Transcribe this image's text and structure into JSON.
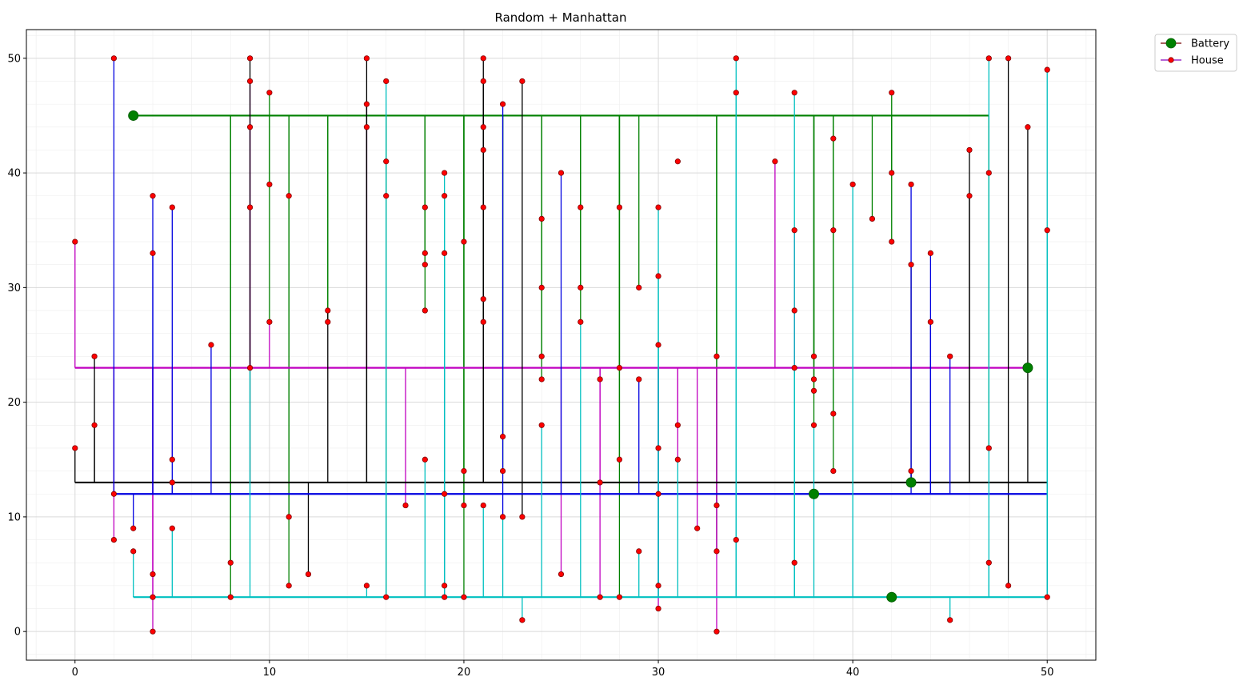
{
  "chart_data": {
    "type": "scatter",
    "title": "Random + Manhattan",
    "xlabel": "",
    "ylabel": "",
    "xlim": [
      -2.5,
      52.5
    ],
    "ylim": [
      -2.5,
      52.5
    ],
    "xticks": [
      0,
      10,
      20,
      30,
      40,
      50
    ],
    "yticks": [
      0,
      10,
      20,
      30,
      40,
      50
    ],
    "grid": true,
    "minor_grid": true,
    "legend_position": "outside-top-right",
    "legend": [
      {
        "label": "Battery",
        "marker": "large-dot",
        "line_color": "#8b2a2a",
        "marker_color": "#008000"
      },
      {
        "label": "House",
        "marker": "small-dot",
        "line_color": "#9b30c8",
        "marker_color": "#ff0000"
      }
    ],
    "colors": {
      "battery": "#008000",
      "house": "#ff0000",
      "house_edge": "#800000",
      "grid": "#d9d9d9",
      "grid_minor": "#eeeeee"
    },
    "series": [
      {
        "name": "Battery",
        "values": [
          [
            3,
            45
          ],
          [
            49,
            23
          ],
          [
            43,
            13
          ],
          [
            38,
            12
          ],
          [
            42,
            3
          ]
        ]
      },
      {
        "name": "House",
        "values": [
          [
            0,
            34
          ],
          [
            0,
            16
          ],
          [
            1,
            24
          ],
          [
            1,
            18
          ],
          [
            2,
            50
          ],
          [
            2,
            12
          ],
          [
            2,
            8
          ],
          [
            3,
            9
          ],
          [
            3,
            7
          ],
          [
            4,
            38
          ],
          [
            4,
            33
          ],
          [
            4,
            5
          ],
          [
            4,
            3
          ],
          [
            4,
            0
          ],
          [
            5,
            37
          ],
          [
            5,
            15
          ],
          [
            5,
            13
          ],
          [
            5,
            9
          ],
          [
            7,
            25
          ],
          [
            8,
            6
          ],
          [
            8,
            3
          ],
          [
            9,
            50
          ],
          [
            9,
            48
          ],
          [
            9,
            44
          ],
          [
            9,
            37
          ],
          [
            9,
            23
          ],
          [
            10,
            47
          ],
          [
            10,
            39
          ],
          [
            10,
            27
          ],
          [
            11,
            38
          ],
          [
            11,
            10
          ],
          [
            11,
            4
          ],
          [
            12,
            5
          ],
          [
            13,
            28
          ],
          [
            13,
            27
          ],
          [
            15,
            50
          ],
          [
            15,
            46
          ],
          [
            15,
            44
          ],
          [
            15,
            4
          ],
          [
            16,
            48
          ],
          [
            16,
            41
          ],
          [
            16,
            38
          ],
          [
            16,
            3
          ],
          [
            17,
            11
          ],
          [
            18,
            37
          ],
          [
            18,
            33
          ],
          [
            18,
            32
          ],
          [
            18,
            28
          ],
          [
            18,
            15
          ],
          [
            19,
            40
          ],
          [
            19,
            38
          ],
          [
            19,
            33
          ],
          [
            19,
            12
          ],
          [
            19,
            4
          ],
          [
            19,
            3
          ],
          [
            20,
            34
          ],
          [
            20,
            14
          ],
          [
            20,
            11
          ],
          [
            20,
            3
          ],
          [
            21,
            50
          ],
          [
            21,
            48
          ],
          [
            21,
            44
          ],
          [
            21,
            42
          ],
          [
            21,
            37
          ],
          [
            21,
            29
          ],
          [
            21,
            27
          ],
          [
            21,
            11
          ],
          [
            22,
            46
          ],
          [
            22,
            17
          ],
          [
            22,
            14
          ],
          [
            22,
            10
          ],
          [
            23,
            48
          ],
          [
            23,
            10
          ],
          [
            23,
            1
          ],
          [
            24,
            36
          ],
          [
            24,
            30
          ],
          [
            24,
            24
          ],
          [
            24,
            22
          ],
          [
            24,
            18
          ],
          [
            25,
            40
          ],
          [
            25,
            5
          ],
          [
            26,
            37
          ],
          [
            26,
            30
          ],
          [
            26,
            27
          ],
          [
            27,
            22
          ],
          [
            27,
            13
          ],
          [
            27,
            3
          ],
          [
            28,
            37
          ],
          [
            28,
            23
          ],
          [
            28,
            15
          ],
          [
            28,
            3
          ],
          [
            29,
            30
          ],
          [
            29,
            22
          ],
          [
            29,
            7
          ],
          [
            30,
            37
          ],
          [
            30,
            31
          ],
          [
            30,
            25
          ],
          [
            30,
            16
          ],
          [
            30,
            12
          ],
          [
            30,
            4
          ],
          [
            30,
            2
          ],
          [
            31,
            41
          ],
          [
            31,
            18
          ],
          [
            31,
            15
          ],
          [
            32,
            9
          ],
          [
            33,
            24
          ],
          [
            33,
            11
          ],
          [
            33,
            7
          ],
          [
            33,
            0
          ],
          [
            34,
            50
          ],
          [
            34,
            47
          ],
          [
            34,
            8
          ],
          [
            36,
            41
          ],
          [
            37,
            47
          ],
          [
            37,
            35
          ],
          [
            37,
            28
          ],
          [
            37,
            23
          ],
          [
            37,
            6
          ],
          [
            38,
            24
          ],
          [
            38,
            22
          ],
          [
            38,
            21
          ],
          [
            38,
            18
          ],
          [
            39,
            43
          ],
          [
            39,
            35
          ],
          [
            39,
            19
          ],
          [
            39,
            14
          ],
          [
            40,
            39
          ],
          [
            41,
            36
          ],
          [
            42,
            47
          ],
          [
            42,
            40
          ],
          [
            42,
            34
          ],
          [
            43,
            39
          ],
          [
            43,
            32
          ],
          [
            43,
            14
          ],
          [
            44,
            33
          ],
          [
            44,
            27
          ],
          [
            45,
            24
          ],
          [
            45,
            1
          ],
          [
            46,
            42
          ],
          [
            46,
            38
          ],
          [
            47,
            50
          ],
          [
            47,
            40
          ],
          [
            47,
            16
          ],
          [
            47,
            6
          ],
          [
            48,
            50
          ],
          [
            48,
            4
          ],
          [
            49,
            44
          ],
          [
            50,
            49
          ],
          [
            50,
            35
          ],
          [
            50,
            3
          ]
        ]
      }
    ],
    "networks": [
      {
        "color": "#008000",
        "battery": [
          3,
          45
        ],
        "trunk_y": 45,
        "houses": [
          [
            8,
            6
          ],
          [
            8,
            3
          ],
          [
            10,
            47
          ],
          [
            10,
            39
          ],
          [
            10,
            27
          ],
          [
            11,
            38
          ],
          [
            11,
            10
          ],
          [
            11,
            4
          ],
          [
            13,
            28
          ],
          [
            13,
            27
          ],
          [
            16,
            41
          ],
          [
            16,
            38
          ],
          [
            16,
            3
          ],
          [
            18,
            37
          ],
          [
            18,
            33
          ],
          [
            18,
            32
          ],
          [
            18,
            28
          ],
          [
            20,
            34
          ],
          [
            20,
            14
          ],
          [
            20,
            11
          ],
          [
            20,
            3
          ],
          [
            21,
            44
          ],
          [
            21,
            42
          ],
          [
            21,
            37
          ],
          [
            21,
            29
          ],
          [
            21,
            27
          ],
          [
            22,
            17
          ],
          [
            22,
            14
          ],
          [
            24,
            36
          ],
          [
            24,
            30
          ],
          [
            24,
            24
          ],
          [
            24,
            22
          ],
          [
            26,
            37
          ],
          [
            26,
            30
          ],
          [
            26,
            27
          ],
          [
            28,
            37
          ],
          [
            28,
            23
          ],
          [
            28,
            15
          ],
          [
            28,
            3
          ],
          [
            29,
            30
          ],
          [
            33,
            24
          ],
          [
            33,
            11
          ],
          [
            33,
            7
          ],
          [
            38,
            24
          ],
          [
            38,
            22
          ],
          [
            38,
            21
          ],
          [
            38,
            18
          ],
          [
            39,
            43
          ],
          [
            39,
            35
          ],
          [
            39,
            19
          ],
          [
            39,
            14
          ],
          [
            41,
            36
          ],
          [
            42,
            47
          ],
          [
            42,
            40
          ],
          [
            42,
            34
          ],
          [
            47,
            40
          ],
          [
            47,
            16
          ]
        ]
      },
      {
        "color": "#c000c0",
        "battery": [
          49,
          23
        ],
        "trunk_y": 23,
        "houses": [
          [
            0,
            34
          ],
          [
            2,
            12
          ],
          [
            2,
            8
          ],
          [
            4,
            5
          ],
          [
            4,
            3
          ],
          [
            4,
            0
          ],
          [
            5,
            15
          ],
          [
            9,
            48
          ],
          [
            9,
            44
          ],
          [
            9,
            37
          ],
          [
            10,
            27
          ],
          [
            15,
            44
          ],
          [
            17,
            11
          ],
          [
            19,
            12
          ],
          [
            19,
            4
          ],
          [
            19,
            3
          ],
          [
            25,
            5
          ],
          [
            27,
            22
          ],
          [
            27,
            13
          ],
          [
            27,
            3
          ],
          [
            30,
            16
          ],
          [
            30,
            12
          ],
          [
            30,
            4
          ],
          [
            30,
            2
          ],
          [
            31,
            18
          ],
          [
            31,
            15
          ],
          [
            32,
            9
          ],
          [
            33,
            7
          ],
          [
            33,
            0
          ],
          [
            36,
            41
          ],
          [
            37,
            35
          ],
          [
            37,
            28
          ]
        ]
      },
      {
        "color": "#000000",
        "battery": [
          43,
          13
        ],
        "trunk_y": 13,
        "houses": [
          [
            0,
            16
          ],
          [
            1,
            24
          ],
          [
            1,
            18
          ],
          [
            9,
            50
          ],
          [
            12,
            5
          ],
          [
            13,
            28
          ],
          [
            15,
            50
          ],
          [
            15,
            46
          ],
          [
            21,
            50
          ],
          [
            21,
            48
          ],
          [
            23,
            48
          ],
          [
            23,
            10
          ],
          [
            43,
            32
          ],
          [
            43,
            14
          ],
          [
            46,
            42
          ],
          [
            46,
            38
          ],
          [
            48,
            50
          ],
          [
            48,
            4
          ],
          [
            49,
            44
          ],
          [
            50,
            3
          ]
        ]
      },
      {
        "color": "#0000e0",
        "battery": [
          38,
          12
        ],
        "trunk_y": 12,
        "houses": [
          [
            2,
            50
          ],
          [
            3,
            9
          ],
          [
            4,
            38
          ],
          [
            4,
            33
          ],
          [
            5,
            37
          ],
          [
            5,
            13
          ],
          [
            7,
            25
          ],
          [
            22,
            46
          ],
          [
            22,
            10
          ],
          [
            25,
            40
          ],
          [
            29,
            22
          ],
          [
            43,
            39
          ],
          [
            44,
            33
          ],
          [
            44,
            27
          ],
          [
            45,
            24
          ],
          [
            50,
            12
          ]
        ]
      },
      {
        "color": "#00c0c0",
        "battery": [
          42,
          3
        ],
        "trunk_y": 3,
        "houses": [
          [
            3,
            7
          ],
          [
            5,
            9
          ],
          [
            9,
            23
          ],
          [
            15,
            4
          ],
          [
            16,
            48
          ],
          [
            18,
            15
          ],
          [
            19,
            40
          ],
          [
            19,
            38
          ],
          [
            19,
            33
          ],
          [
            21,
            11
          ],
          [
            22,
            10
          ],
          [
            23,
            1
          ],
          [
            24,
            18
          ],
          [
            26,
            27
          ],
          [
            29,
            7
          ],
          [
            30,
            37
          ],
          [
            30,
            31
          ],
          [
            30,
            25
          ],
          [
            31,
            15
          ],
          [
            34,
            50
          ],
          [
            34,
            47
          ],
          [
            34,
            8
          ],
          [
            37,
            47
          ],
          [
            37,
            23
          ],
          [
            37,
            6
          ],
          [
            38,
            18
          ],
          [
            40,
            39
          ],
          [
            45,
            1
          ],
          [
            47,
            50
          ],
          [
            47,
            6
          ],
          [
            50,
            49
          ],
          [
            50,
            35
          ]
        ]
      }
    ]
  }
}
